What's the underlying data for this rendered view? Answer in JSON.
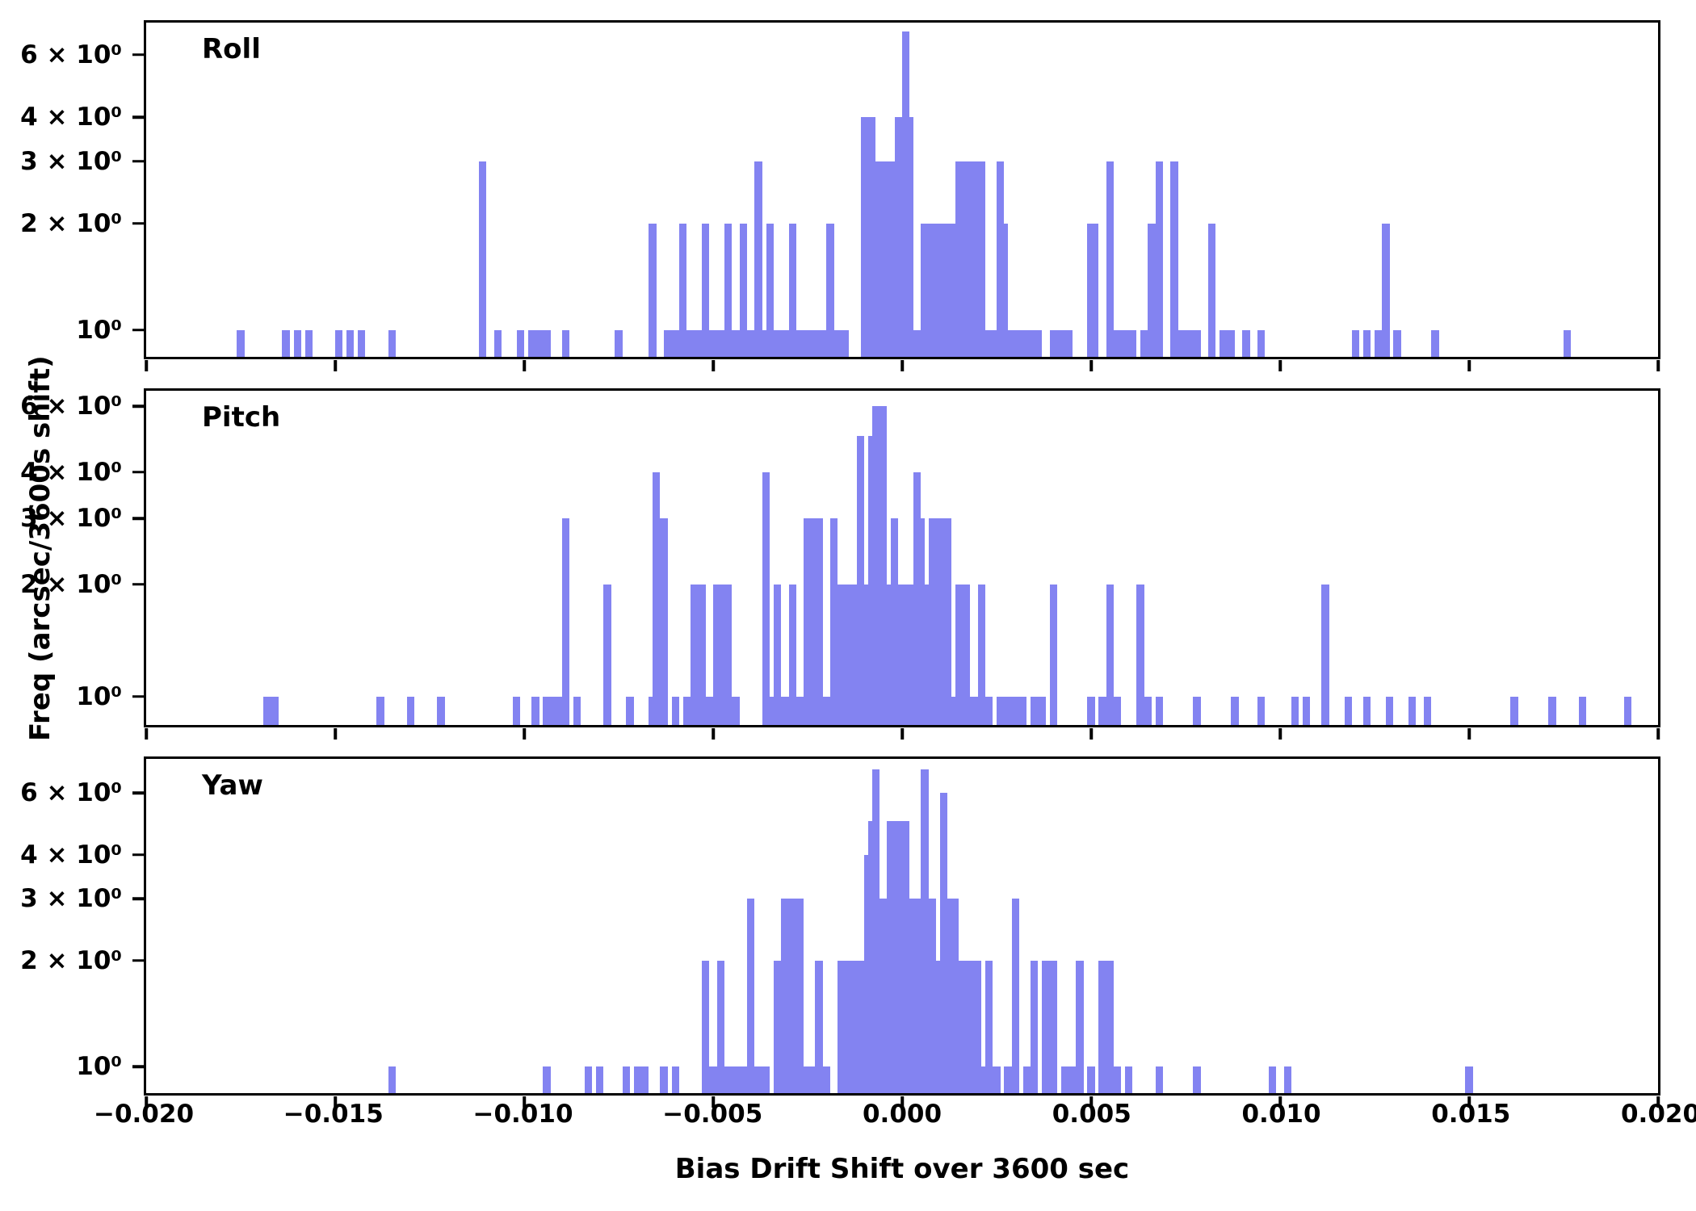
{
  "figure": {
    "xlabel": "Bias Drift Shift over 3600 sec",
    "ylabel": "Freq (arcsec/3600s shift)"
  },
  "chart_data": {
    "type": "bar",
    "subtype": "histogram",
    "title": "",
    "xlabel": "Bias Drift Shift over 3600 sec",
    "ylabel": "Freq (arcsec/3600s shift)",
    "y_scale": "log",
    "grid": false,
    "legend": null,
    "bar_color": "#8383f1",
    "bin_width": 0.0002,
    "xlim": [
      -0.02,
      0.02
    ],
    "x_ticks": [
      -0.02,
      -0.015,
      -0.01,
      -0.005,
      0.0,
      0.005,
      0.01,
      0.015,
      0.02
    ],
    "x_tick_labels": [
      "−0.020",
      "−0.015",
      "−0.010",
      "−0.005",
      "0.000",
      "0.005",
      "0.010",
      "0.015",
      "0.020"
    ],
    "y_ticks": [
      1,
      2,
      3,
      4,
      6
    ],
    "y_tick_labels": [
      "10⁰",
      "2 × 10⁰",
      "3 × 10⁰",
      "4 × 10⁰",
      "6 × 10⁰"
    ],
    "panels": [
      {
        "label": "Roll",
        "ylim": [
          0.84,
          7.4
        ],
        "bars": [
          [
            -0.0175,
            1
          ],
          [
            -0.0163,
            1
          ],
          [
            -0.016,
            1
          ],
          [
            -0.0157,
            1
          ],
          [
            -0.0149,
            1
          ],
          [
            -0.0146,
            1
          ],
          [
            -0.0143,
            1
          ],
          [
            -0.0135,
            1
          ],
          [
            -0.0111,
            3
          ],
          [
            -0.0107,
            1
          ],
          [
            -0.0101,
            1
          ],
          [
            -0.0098,
            1
          ],
          [
            -0.0096,
            1
          ],
          [
            -0.0094,
            1
          ],
          [
            -0.0089,
            1
          ],
          [
            -0.0075,
            1
          ],
          [
            -0.0066,
            2
          ],
          [
            -0.0062,
            1
          ],
          [
            -0.006,
            1
          ],
          [
            -0.0058,
            2
          ],
          [
            -0.0056,
            1
          ],
          [
            -0.0054,
            1
          ],
          [
            -0.0052,
            2
          ],
          [
            -0.005,
            1
          ],
          [
            -0.0048,
            1
          ],
          [
            -0.0046,
            2
          ],
          [
            -0.0044,
            1
          ],
          [
            -0.0042,
            2
          ],
          [
            -0.004,
            1
          ],
          [
            -0.0038,
            3
          ],
          [
            -0.0037,
            1
          ],
          [
            -0.0035,
            2
          ],
          [
            -0.0033,
            1
          ],
          [
            -0.0031,
            1
          ],
          [
            -0.0029,
            2
          ],
          [
            -0.0027,
            1
          ],
          [
            -0.0025,
            1
          ],
          [
            -0.0023,
            1
          ],
          [
            -0.0021,
            1
          ],
          [
            -0.0019,
            2
          ],
          [
            -0.0017,
            1
          ],
          [
            -0.0015,
            1
          ],
          [
            -0.001,
            4
          ],
          [
            -0.0008,
            4
          ],
          [
            -0.0007,
            3
          ],
          [
            -0.0006,
            3
          ],
          [
            -0.0005,
            3
          ],
          [
            -0.0004,
            3
          ],
          [
            -0.0003,
            3
          ],
          [
            -0.0002,
            3
          ],
          [
            -0.0001,
            4
          ],
          [
            0.0001,
            7
          ],
          [
            0.0002,
            4
          ],
          [
            0.0004,
            1
          ],
          [
            0.0006,
            2
          ],
          [
            0.0007,
            2
          ],
          [
            0.0008,
            2
          ],
          [
            0.0009,
            2
          ],
          [
            0.001,
            2
          ],
          [
            0.0011,
            2
          ],
          [
            0.0012,
            2
          ],
          [
            0.0013,
            2
          ],
          [
            0.0015,
            3
          ],
          [
            0.0016,
            3
          ],
          [
            0.0017,
            1
          ],
          [
            0.0018,
            3
          ],
          [
            0.0019,
            3
          ],
          [
            0.002,
            2
          ],
          [
            0.0021,
            3
          ],
          [
            0.0023,
            1
          ],
          [
            0.0024,
            1
          ],
          [
            0.0026,
            3
          ],
          [
            0.0027,
            2
          ],
          [
            0.0028,
            1
          ],
          [
            0.003,
            1
          ],
          [
            0.0032,
            1
          ],
          [
            0.0034,
            1
          ],
          [
            0.0036,
            1
          ],
          [
            0.004,
            1
          ],
          [
            0.0042,
            1
          ],
          [
            0.0044,
            1
          ],
          [
            0.005,
            2
          ],
          [
            0.0051,
            2
          ],
          [
            0.0055,
            3
          ],
          [
            0.0057,
            1
          ],
          [
            0.0059,
            1
          ],
          [
            0.0061,
            1
          ],
          [
            0.0064,
            1
          ],
          [
            0.0066,
            2
          ],
          [
            0.0068,
            3
          ],
          [
            0.0072,
            3
          ],
          [
            0.0074,
            1
          ],
          [
            0.0076,
            1
          ],
          [
            0.0078,
            1
          ],
          [
            0.0082,
            2
          ],
          [
            0.0085,
            1
          ],
          [
            0.0087,
            1
          ],
          [
            0.0091,
            1
          ],
          [
            0.0095,
            1
          ],
          [
            0.012,
            1
          ],
          [
            0.0123,
            1
          ],
          [
            0.0126,
            1
          ],
          [
            0.0128,
            2
          ],
          [
            0.0131,
            1
          ],
          [
            0.0141,
            1
          ],
          [
            0.0176,
            1
          ]
        ]
      },
      {
        "label": "Pitch",
        "ylim": [
          0.84,
          6.6
        ],
        "bars": [
          [
            -0.0168,
            1
          ],
          [
            -0.0166,
            1
          ],
          [
            -0.0138,
            1
          ],
          [
            -0.013,
            1
          ],
          [
            -0.0122,
            1
          ],
          [
            -0.0102,
            1
          ],
          [
            -0.0097,
            1
          ],
          [
            -0.0094,
            1
          ],
          [
            -0.0092,
            1
          ],
          [
            -0.009,
            1
          ],
          [
            -0.0089,
            3
          ],
          [
            -0.0086,
            1
          ],
          [
            -0.0078,
            2
          ],
          [
            -0.0072,
            1
          ],
          [
            -0.0066,
            1
          ],
          [
            -0.0065,
            4
          ],
          [
            -0.0064,
            3
          ],
          [
            -0.0063,
            3
          ],
          [
            -0.006,
            1
          ],
          [
            -0.0057,
            1
          ],
          [
            -0.0055,
            2
          ],
          [
            -0.0053,
            2
          ],
          [
            -0.0051,
            1
          ],
          [
            -0.0049,
            2
          ],
          [
            -0.0047,
            2
          ],
          [
            -0.0046,
            2
          ],
          [
            -0.0044,
            1
          ],
          [
            -0.0036,
            4
          ],
          [
            -0.0035,
            1
          ],
          [
            -0.0033,
            2
          ],
          [
            -0.0031,
            1
          ],
          [
            -0.0029,
            2
          ],
          [
            -0.0027,
            1
          ],
          [
            -0.0025,
            3
          ],
          [
            -0.0024,
            3
          ],
          [
            -0.0022,
            3
          ],
          [
            -0.002,
            1
          ],
          [
            -0.0018,
            3
          ],
          [
            -0.0016,
            2
          ],
          [
            -0.0015,
            2
          ],
          [
            -0.0013,
            2
          ],
          [
            -0.0011,
            5
          ],
          [
            -0.0009,
            2
          ],
          [
            -0.0008,
            5
          ],
          [
            -0.0007,
            6
          ],
          [
            -0.0005,
            6
          ],
          [
            -0.0004,
            2
          ],
          [
            -0.0003,
            2
          ],
          [
            -0.0002,
            3
          ],
          [
            0.0,
            2
          ],
          [
            0.0002,
            2
          ],
          [
            0.0004,
            4
          ],
          [
            0.0005,
            3
          ],
          [
            0.0006,
            2
          ],
          [
            0.0008,
            3
          ],
          [
            0.0009,
            3
          ],
          [
            0.0011,
            3
          ],
          [
            0.0012,
            3
          ],
          [
            0.0013,
            1
          ],
          [
            0.0015,
            2
          ],
          [
            0.0017,
            2
          ],
          [
            0.0019,
            1
          ],
          [
            0.0021,
            2
          ],
          [
            0.0023,
            1
          ],
          [
            0.0026,
            1
          ],
          [
            0.0028,
            1
          ],
          [
            0.003,
            1
          ],
          [
            0.0032,
            1
          ],
          [
            0.0035,
            1
          ],
          [
            0.0037,
            1
          ],
          [
            0.004,
            2
          ],
          [
            0.005,
            1
          ],
          [
            0.0053,
            1
          ],
          [
            0.0055,
            2
          ],
          [
            0.0057,
            1
          ],
          [
            0.0063,
            2
          ],
          [
            0.0065,
            1
          ],
          [
            0.0068,
            1
          ],
          [
            0.0078,
            1
          ],
          [
            0.0088,
            1
          ],
          [
            0.0095,
            1
          ],
          [
            0.0104,
            1
          ],
          [
            0.0107,
            1
          ],
          [
            0.0112,
            2
          ],
          [
            0.0118,
            1
          ],
          [
            0.0123,
            1
          ],
          [
            0.0129,
            1
          ],
          [
            0.0135,
            1
          ],
          [
            0.0139,
            1
          ],
          [
            0.0162,
            1
          ],
          [
            0.0172,
            1
          ],
          [
            0.018,
            1
          ],
          [
            0.0192,
            1
          ]
        ]
      },
      {
        "label": "Yaw",
        "ylim": [
          0.84,
          7.5
        ],
        "bars": [
          [
            -0.0135,
            1
          ],
          [
            -0.0094,
            1
          ],
          [
            -0.0083,
            1
          ],
          [
            -0.008,
            1
          ],
          [
            -0.0073,
            1
          ],
          [
            -0.007,
            1
          ],
          [
            -0.0068,
            1
          ],
          [
            -0.0063,
            1
          ],
          [
            -0.006,
            1
          ],
          [
            -0.0052,
            2
          ],
          [
            -0.005,
            1
          ],
          [
            -0.0048,
            2
          ],
          [
            -0.0046,
            1
          ],
          [
            -0.0044,
            1
          ],
          [
            -0.0042,
            1
          ],
          [
            -0.004,
            3
          ],
          [
            -0.0038,
            1
          ],
          [
            -0.0036,
            1
          ],
          [
            -0.0033,
            2
          ],
          [
            -0.0031,
            3
          ],
          [
            -0.003,
            3
          ],
          [
            -0.0029,
            3
          ],
          [
            -0.0028,
            3
          ],
          [
            -0.0027,
            3
          ],
          [
            -0.0026,
            1
          ],
          [
            -0.0024,
            1
          ],
          [
            -0.0022,
            2
          ],
          [
            -0.002,
            1
          ],
          [
            -0.0016,
            2
          ],
          [
            -0.0014,
            2
          ],
          [
            -0.0012,
            2
          ],
          [
            -0.001,
            2
          ],
          [
            -0.0009,
            4
          ],
          [
            -0.0008,
            5
          ],
          [
            -0.0007,
            7
          ],
          [
            -0.0006,
            3
          ],
          [
            -0.0005,
            3
          ],
          [
            -0.0004,
            3
          ],
          [
            -0.0003,
            5
          ],
          [
            -0.0002,
            3
          ],
          [
            -0.0001,
            5
          ],
          [
            0.0001,
            5
          ],
          [
            0.0003,
            3
          ],
          [
            0.0004,
            3
          ],
          [
            0.0006,
            7
          ],
          [
            0.0007,
            3
          ],
          [
            0.0008,
            3
          ],
          [
            0.0009,
            2
          ],
          [
            0.0011,
            6
          ],
          [
            0.0012,
            3
          ],
          [
            0.0014,
            3
          ],
          [
            0.0016,
            2
          ],
          [
            0.0018,
            2
          ],
          [
            0.002,
            2
          ],
          [
            0.0021,
            1
          ],
          [
            0.0023,
            2
          ],
          [
            0.0025,
            1
          ],
          [
            0.0028,
            1
          ],
          [
            0.003,
            3
          ],
          [
            0.0033,
            1
          ],
          [
            0.0035,
            2
          ],
          [
            0.0038,
            2
          ],
          [
            0.004,
            2
          ],
          [
            0.0043,
            1
          ],
          [
            0.0045,
            1
          ],
          [
            0.0047,
            2
          ],
          [
            0.005,
            1
          ],
          [
            0.0053,
            2
          ],
          [
            0.0055,
            2
          ],
          [
            0.0057,
            1
          ],
          [
            0.006,
            1
          ],
          [
            0.0068,
            1
          ],
          [
            0.0078,
            1
          ],
          [
            0.0098,
            1
          ],
          [
            0.0102,
            1
          ],
          [
            0.015,
            1
          ]
        ]
      }
    ]
  }
}
